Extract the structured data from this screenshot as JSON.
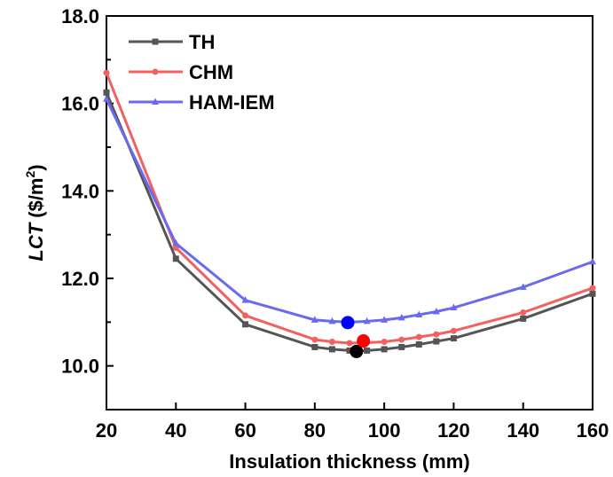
{
  "chart_data": {
    "type": "line",
    "xlabel": "Insulation thickness (mm)",
    "ylabel_main": "LCT",
    "ylabel_unit_prefix": " ($/m",
    "ylabel_unit_sup": "2",
    "ylabel_unit_suffix": ")",
    "xlim": [
      20,
      160
    ],
    "ylim": [
      9.0,
      18.0
    ],
    "x_ticks": [
      20,
      40,
      60,
      80,
      100,
      120,
      140,
      160
    ],
    "x_tick_labels": [
      "20",
      "40",
      "60",
      "80",
      "100",
      "120",
      "140",
      "160"
    ],
    "y_ticks": [
      10,
      12,
      14,
      16,
      18
    ],
    "y_tick_labels": [
      "10.0",
      "12.0",
      "14.0",
      "16.0",
      "18.0"
    ],
    "grid": false,
    "legend_position": "top-left",
    "series": [
      {
        "name": "TH",
        "color": "#555555",
        "marker": "square",
        "x": [
          20,
          40,
          60,
          80,
          85,
          90,
          95,
          100,
          105,
          110,
          115,
          120,
          140,
          160
        ],
        "y": [
          16.25,
          12.45,
          10.95,
          10.43,
          10.38,
          10.35,
          10.35,
          10.38,
          10.43,
          10.49,
          10.56,
          10.63,
          11.08,
          11.65
        ]
      },
      {
        "name": "CHM",
        "color": "#f26060",
        "marker": "circle",
        "x": [
          20,
          40,
          60,
          80,
          85,
          90,
          95,
          100,
          105,
          110,
          115,
          120,
          140,
          160
        ],
        "y": [
          16.7,
          12.7,
          11.15,
          10.6,
          10.55,
          10.52,
          10.53,
          10.55,
          10.6,
          10.66,
          10.72,
          10.8,
          11.22,
          11.78
        ]
      },
      {
        "name": "HAM-IEM",
        "color": "#6a6af0",
        "marker": "triangle",
        "x": [
          20,
          40,
          60,
          80,
          85,
          90,
          95,
          100,
          105,
          110,
          115,
          120,
          140,
          160
        ],
        "y": [
          16.1,
          12.8,
          11.5,
          11.05,
          11.02,
          11.0,
          11.02,
          11.05,
          11.1,
          11.17,
          11.24,
          11.33,
          11.8,
          12.38
        ]
      }
    ],
    "optimum_points": [
      {
        "series": "TH",
        "x": 92,
        "y": 10.33,
        "color": "#000000"
      },
      {
        "series": "CHM",
        "x": 94,
        "y": 10.57,
        "color": "#ff0000"
      },
      {
        "series": "HAM-IEM",
        "x": 89.5,
        "y": 10.99,
        "color": "#0000ff"
      }
    ]
  }
}
